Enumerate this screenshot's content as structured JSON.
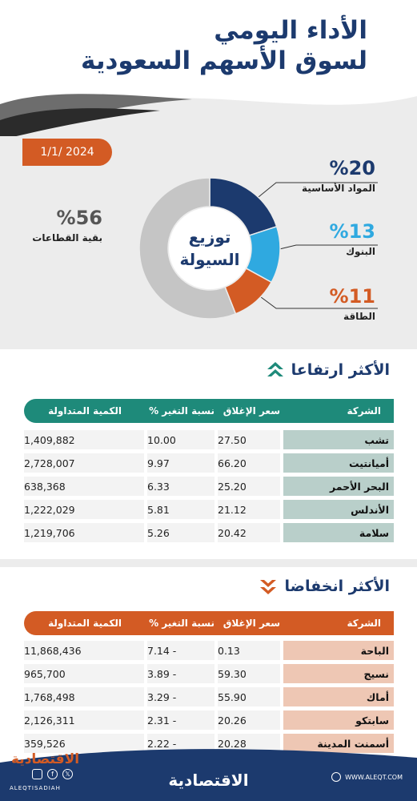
{
  "header": {
    "title_line1": "الأداء اليومي",
    "title_line2": "لسوق الأسهم السعودية",
    "date": "1/1/ 2024"
  },
  "donut": {
    "center_line1": "توزيع",
    "center_line2": "السيولة",
    "segments": [
      {
        "label": "المواد الأساسية",
        "pct": "%20",
        "value": 20,
        "color": "#1c3a6e"
      },
      {
        "label": "البنوك",
        "pct": "%13",
        "value": 13,
        "color": "#2fa9e0"
      },
      {
        "label": "الطاقة",
        "pct": "%11",
        "value": 11,
        "color": "#d35b24"
      },
      {
        "label": "بقية القطاعات",
        "pct": "%56",
        "value": 56,
        "color": "#c5c5c5"
      }
    ]
  },
  "gainers": {
    "title": "الأكثر ارتفاعا",
    "headers": {
      "company": "الشركة",
      "close": "سعر الإغلاق",
      "change": "نسبة التغير %",
      "volume": "الكمية المتداولة"
    },
    "rows": [
      {
        "company": "تشب",
        "close": "27.50",
        "change": "10.00",
        "volume": "1,409,882"
      },
      {
        "company": "أميانتيت",
        "close": "66.20",
        "change": "9.97",
        "volume": "2,728,007"
      },
      {
        "company": "البحر الأحمر",
        "close": "25.20",
        "change": "6.33",
        "volume": "638,368"
      },
      {
        "company": "الأندلس",
        "close": "21.12",
        "change": "5.81",
        "volume": "1,222,029"
      },
      {
        "company": "سلامة",
        "close": "20.42",
        "change": "5.26",
        "volume": "1,219,706"
      }
    ]
  },
  "losers": {
    "title": "الأكثر انخفاضا",
    "headers": {
      "company": "الشركة",
      "close": "سعر الإغلاق",
      "change": "نسبة التغير %",
      "volume": "الكمية المتداولة"
    },
    "rows": [
      {
        "company": "الباحة",
        "close": "0.13",
        "change": "7.14 -",
        "volume": "11,868,436"
      },
      {
        "company": "نسيج",
        "close": "59.30",
        "change": "3.89 -",
        "volume": "965,700"
      },
      {
        "company": "أماك",
        "close": "55.90",
        "change": "3.29 -",
        "volume": "1,768,498"
      },
      {
        "company": "سابتكو",
        "close": "20.26",
        "change": "2.31 -",
        "volume": "2,126,311"
      },
      {
        "company": "أسمنت المدينة",
        "close": "20.28",
        "change": "2.22 -",
        "volume": "359,526"
      }
    ]
  },
  "footer": {
    "brand": "الاقتصادية",
    "handle": "ALEQTISADIAH",
    "site": "WWW.ALEQT.COM"
  },
  "colors": {
    "navy": "#1c3a6e",
    "orange": "#d35b24",
    "teal": "#1e8a7a",
    "gain_name_bg": "#b9cfca",
    "loss_name_bg": "#eec7b4"
  }
}
